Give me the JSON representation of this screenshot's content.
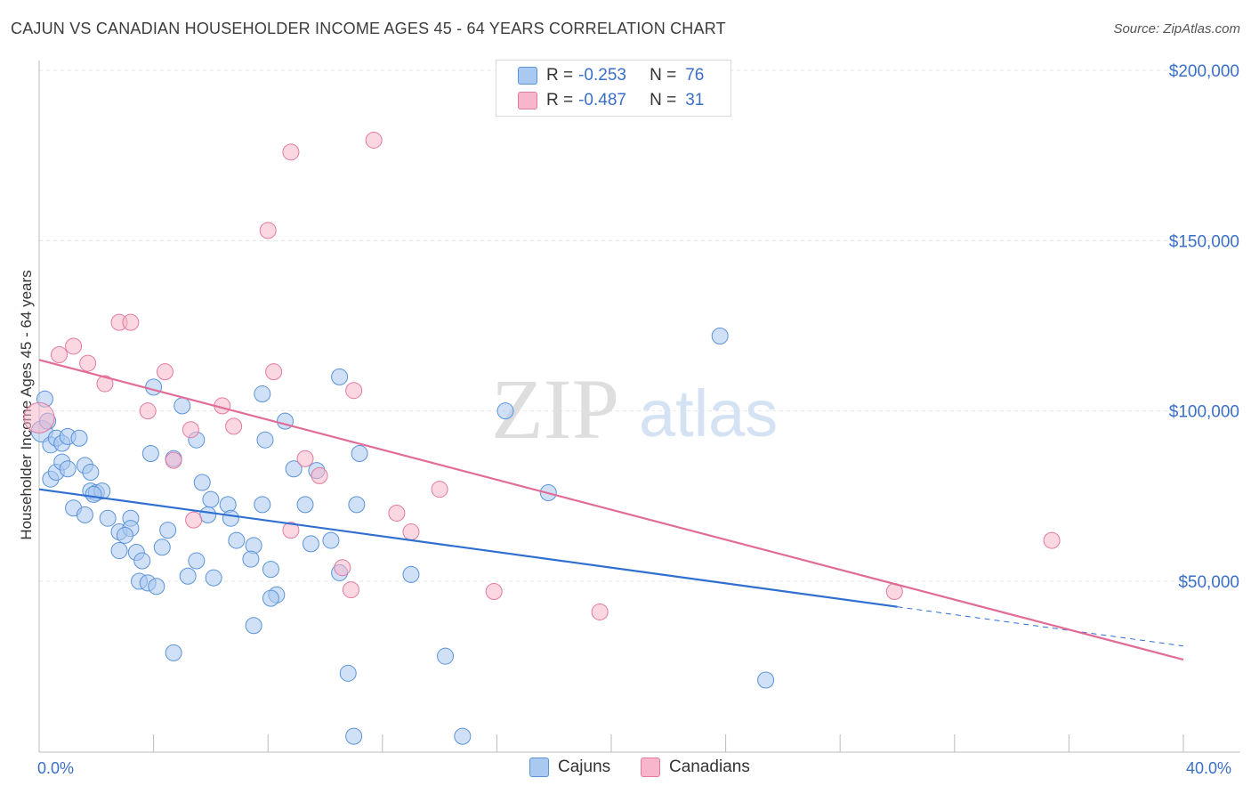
{
  "title": "CAJUN VS CANADIAN HOUSEHOLDER INCOME AGES 45 - 64 YEARS CORRELATION CHART",
  "source": "Source: ZipAtlas.com",
  "watermark": {
    "zip": "ZIP",
    "atlas": "atlas"
  },
  "legend_top": {
    "rows": [
      {
        "r_label": "R =",
        "r_value": "-0.253",
        "n_label": "N =",
        "n_value": "76",
        "color": "#a9c9f0"
      },
      {
        "r_label": "R =",
        "r_value": "-0.487",
        "n_label": "N =",
        "n_value": "31",
        "color": "#f7b6cb"
      }
    ]
  },
  "legend_bottom": [
    {
      "label": "Cajuns",
      "color": "#a9c9f0"
    },
    {
      "label": "Canadians",
      "color": "#f7b6cb"
    }
  ],
  "x_axis": {
    "min_label": "0.0%",
    "max_label": "40.0%"
  },
  "chart_data": {
    "type": "scatter",
    "title": "CAJUN VS CANADIAN HOUSEHOLDER INCOME AGES 45 - 64 YEARS CORRELATION CHART",
    "xlabel": "",
    "ylabel": "Householder Income Ages 45 - 64 years",
    "xlim": [
      0,
      40
    ],
    "ylim": [
      0,
      208000
    ],
    "y_ticks": [
      {
        "value": 50000,
        "label": "$50,000"
      },
      {
        "value": 100000,
        "label": "$100,000"
      },
      {
        "value": 150000,
        "label": "$150,000"
      },
      {
        "value": 200000,
        "label": "$200,000"
      }
    ],
    "grid": true,
    "legend_position": "top-center",
    "series": [
      {
        "name": "Cajuns",
        "color": "#a9c9f0",
        "stroke": "#5b93d8",
        "trend": {
          "x0": 0,
          "y0": 77000,
          "x1": 30,
          "y1": 42500,
          "dash_to_x": 40,
          "dash_to_y": 31000,
          "color": "#2f6fd0"
        },
        "points": [
          [
            0.1,
            94000
          ],
          [
            0.2,
            103500
          ],
          [
            0.4,
            90000
          ],
          [
            0.6,
            92000
          ],
          [
            0.8,
            90500
          ],
          [
            1.0,
            92500
          ],
          [
            1.4,
            92000
          ],
          [
            0.4,
            80000
          ],
          [
            0.6,
            82000
          ],
          [
            0.8,
            85000
          ],
          [
            1.0,
            83000
          ],
          [
            1.6,
            84000
          ],
          [
            1.8,
            82000
          ],
          [
            1.8,
            76500
          ],
          [
            2.0,
            76000
          ],
          [
            2.2,
            76500
          ],
          [
            1.9,
            75500
          ],
          [
            1.2,
            71500
          ],
          [
            1.6,
            69500
          ],
          [
            2.4,
            68500
          ],
          [
            3.2,
            68500
          ],
          [
            2.8,
            64500
          ],
          [
            3.2,
            65500
          ],
          [
            3.0,
            63500
          ],
          [
            2.8,
            59000
          ],
          [
            3.4,
            58500
          ],
          [
            3.6,
            56000
          ],
          [
            3.5,
            50000
          ],
          [
            3.8,
            49500
          ],
          [
            4.1,
            48500
          ],
          [
            4.0,
            107000
          ],
          [
            5.0,
            101500
          ],
          [
            3.9,
            87500
          ],
          [
            4.7,
            86000
          ],
          [
            5.5,
            91500
          ],
          [
            5.7,
            79000
          ],
          [
            6.0,
            74000
          ],
          [
            5.9,
            69500
          ],
          [
            6.6,
            72500
          ],
          [
            6.7,
            68500
          ],
          [
            4.5,
            65000
          ],
          [
            4.3,
            60000
          ],
          [
            5.5,
            56000
          ],
          [
            5.2,
            51500
          ],
          [
            6.1,
            51000
          ],
          [
            6.9,
            62000
          ],
          [
            7.5,
            60500
          ],
          [
            7.4,
            56500
          ],
          [
            7.8,
            72500
          ],
          [
            8.1,
            53500
          ],
          [
            8.3,
            46000
          ],
          [
            8.1,
            45000
          ],
          [
            7.5,
            37000
          ],
          [
            4.7,
            29000
          ],
          [
            7.8,
            105000
          ],
          [
            7.9,
            91500
          ],
          [
            8.6,
            97000
          ],
          [
            8.9,
            83000
          ],
          [
            9.3,
            72500
          ],
          [
            9.5,
            61000
          ],
          [
            9.7,
            82500
          ],
          [
            10.5,
            110000
          ],
          [
            10.2,
            62000
          ],
          [
            10.5,
            52500
          ],
          [
            11.1,
            72500
          ],
          [
            11.2,
            87500
          ],
          [
            10.8,
            23000
          ],
          [
            11.0,
            4500
          ],
          [
            13.0,
            52000
          ],
          [
            14.2,
            28000
          ],
          [
            14.8,
            4500
          ],
          [
            16.3,
            100000
          ],
          [
            17.8,
            76000
          ],
          [
            23.8,
            122000
          ],
          [
            25.4,
            21000
          ],
          [
            0.3,
            97000
          ]
        ]
      },
      {
        "name": "Canadians",
        "color": "#f7b6cb",
        "stroke": "#e27aa0",
        "trend": {
          "x0": 0,
          "y0": 115000,
          "x1": 40,
          "y1": 27000,
          "color": "#e06c97"
        },
        "points": [
          [
            0.0,
            98000
          ],
          [
            0.7,
            116500
          ],
          [
            1.2,
            119000
          ],
          [
            1.7,
            114000
          ],
          [
            2.3,
            108000
          ],
          [
            2.8,
            126000
          ],
          [
            3.2,
            126000
          ],
          [
            3.8,
            100000
          ],
          [
            4.4,
            111500
          ],
          [
            4.7,
            85500
          ],
          [
            5.3,
            94500
          ],
          [
            5.4,
            68000
          ],
          [
            6.4,
            101500
          ],
          [
            6.8,
            95500
          ],
          [
            8.0,
            153000
          ],
          [
            8.8,
            65000
          ],
          [
            8.2,
            111500
          ],
          [
            8.8,
            176000
          ],
          [
            9.3,
            86000
          ],
          [
            9.8,
            81000
          ],
          [
            10.6,
            54000
          ],
          [
            10.9,
            47500
          ],
          [
            11.0,
            106000
          ],
          [
            11.7,
            179500
          ],
          [
            12.5,
            70000
          ],
          [
            13.0,
            64500
          ],
          [
            14.0,
            77000
          ],
          [
            15.9,
            47000
          ],
          [
            19.6,
            41000
          ],
          [
            29.9,
            47000
          ],
          [
            35.4,
            62000
          ]
        ]
      }
    ]
  }
}
